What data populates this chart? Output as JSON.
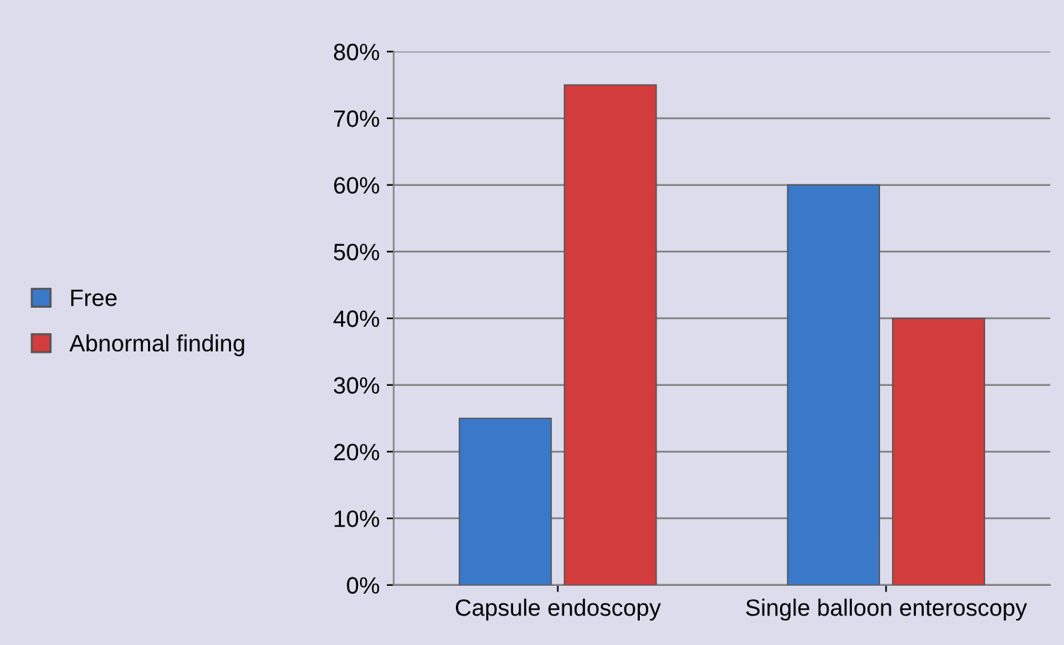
{
  "chart_data": {
    "type": "bar",
    "categories": [
      "Capsule endoscopy",
      "Single balloon enteroscopy"
    ],
    "series": [
      {
        "name": "Free",
        "color": "#3a78c9",
        "values": [
          25,
          60
        ]
      },
      {
        "name": "Abnormal finding",
        "color": "#d23c3c",
        "values": [
          75,
          40
        ]
      }
    ],
    "ylim": [
      0,
      80
    ],
    "yticks": [
      {
        "value": 0,
        "label": "0%"
      },
      {
        "value": 10,
        "label": "10%"
      },
      {
        "value": 20,
        "label": "20%"
      },
      {
        "value": 30,
        "label": "30%"
      },
      {
        "value": 40,
        "label": "40%"
      },
      {
        "value": 50,
        "label": "50%"
      },
      {
        "value": 60,
        "label": "60%"
      },
      {
        "value": 70,
        "label": "70%"
      },
      {
        "value": 80,
        "label": "80%"
      }
    ],
    "grid": "y",
    "legend": "left"
  }
}
